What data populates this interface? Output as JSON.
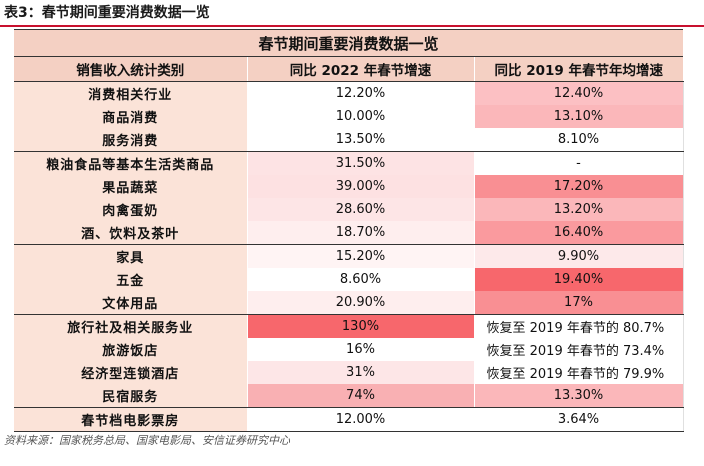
{
  "caption": "表3：春节期间重要消费数据一览",
  "table": {
    "title": "春节期间重要消费数据一览",
    "headers": [
      "销售收入统计类别",
      "同比 2022 年春节增速",
      "同比 2019 年春节年均增速"
    ],
    "rows": [
      {
        "category": "消费相关行业",
        "yoy2022": "12.20%",
        "vs2019": "12.40%",
        "c1": "#ffffff",
        "c2": "#fcc0c3"
      },
      {
        "category": "商品消费",
        "yoy2022": "10.00%",
        "vs2019": "13.10%",
        "c1": "#ffffff",
        "c2": "#fbb7ba"
      },
      {
        "category": "服务消费",
        "yoy2022": "13.50%",
        "vs2019": "8.10%",
        "c1": "#ffffff",
        "c2": "#ffffff",
        "sep": true
      },
      {
        "category": "粮油食品等基本生活类商品",
        "yoy2022": "31.50%",
        "vs2019": "-",
        "c1": "#fde3e4",
        "c2": "#ffffff"
      },
      {
        "category": "果品蔬菜",
        "yoy2022": "39.00%",
        "vs2019": "17.20%",
        "c1": "#fde1e2",
        "c2": "#f98f93"
      },
      {
        "category": "肉禽蛋奶",
        "yoy2022": "28.60%",
        "vs2019": "13.20%",
        "c1": "#fde5e6",
        "c2": "#fbb7ba"
      },
      {
        "category": "酒、饮料及茶叶",
        "yoy2022": "18.70%",
        "vs2019": "16.40%",
        "c1": "#feeeee",
        "c2": "#fa9a9e",
        "sep": true
      },
      {
        "category": "家具",
        "yoy2022": "15.20%",
        "vs2019": "9.90%",
        "c1": "#fff4f4",
        "c2": "#fde9ea"
      },
      {
        "category": "五金",
        "yoy2022": "8.60%",
        "vs2019": "19.40%",
        "c1": "#ffffff",
        "c2": "#f7676c"
      },
      {
        "category": "文体用品",
        "yoy2022": "20.90%",
        "vs2019": "17%",
        "c1": "#feeeee",
        "c2": "#f98f93",
        "sep": true
      },
      {
        "category": "旅行社及相关服务业",
        "yoy2022": "130%",
        "vs2019": "恢复至 2019 年春节的 80.7%",
        "c1": "#f7676c",
        "c2": "#ffffff"
      },
      {
        "category": "旅游饭店",
        "yoy2022": "16%",
        "vs2019": "恢复至 2019 年春节的 73.4%",
        "c1": "#ffffff",
        "c2": "#ffffff"
      },
      {
        "category": "经济型连锁酒店",
        "yoy2022": "31%",
        "vs2019": "恢复至 2019 年春节的 79.9%",
        "c1": "#fde6e7",
        "c2": "#ffffff"
      },
      {
        "category": "民宿服务",
        "yoy2022": "74%",
        "vs2019": "13.30%",
        "c1": "#f9b0b3",
        "c2": "#fbb7ba",
        "sep": true
      },
      {
        "category": "春节档电影票房",
        "yoy2022": "12.00%",
        "vs2019": "3.64%",
        "c1": "#ffffff",
        "c2": "#ffffff",
        "last": true
      }
    ]
  },
  "source": "资料来源：国家税务总局、国家电影局、安信证券研究中心"
}
